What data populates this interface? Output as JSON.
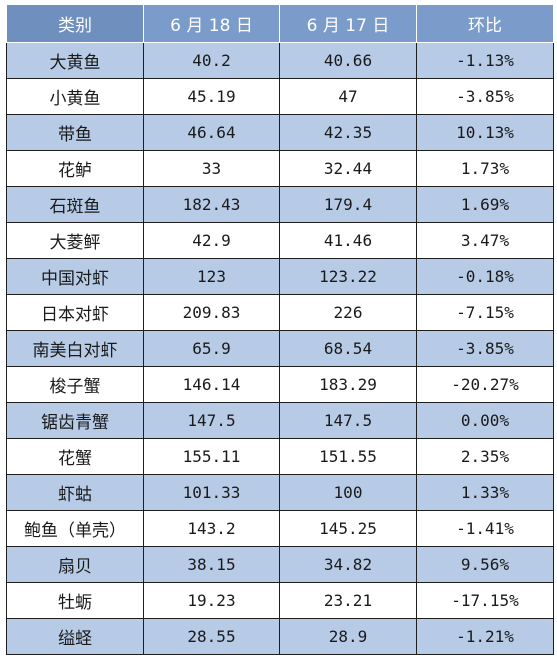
{
  "table": {
    "headers": [
      "类别",
      "6 月 18 日",
      "6 月 17 日",
      "环比"
    ],
    "rows": [
      [
        "大黄鱼",
        "40.2",
        "40.66",
        "-1.13%"
      ],
      [
        "小黄鱼",
        "45.19",
        "47",
        "-3.85%"
      ],
      [
        "带鱼",
        "46.64",
        "42.35",
        "10.13%"
      ],
      [
        "花鲈",
        "33",
        "32.44",
        "1.73%"
      ],
      [
        "石斑鱼",
        "182.43",
        "179.4",
        "1.69%"
      ],
      [
        "大菱鲆",
        "42.9",
        "41.46",
        "3.47%"
      ],
      [
        "中国对虾",
        "123",
        "123.22",
        "-0.18%"
      ],
      [
        "日本对虾",
        "209.83",
        "226",
        "-7.15%"
      ],
      [
        "南美白对虾",
        "65.9",
        "68.54",
        "-3.85%"
      ],
      [
        "梭子蟹",
        "146.14",
        "183.29",
        "-20.27%"
      ],
      [
        "锯齿青蟹",
        "147.5",
        "147.5",
        "0.00%"
      ],
      [
        "花蟹",
        "155.11",
        "151.55",
        "2.35%"
      ],
      [
        "虾蛄",
        "101.33",
        "100",
        "1.33%"
      ],
      [
        "鲍鱼（单壳）",
        "143.2",
        "145.25",
        "-1.41%"
      ],
      [
        "扇贝",
        "38.15",
        "34.82",
        "9.56%"
      ],
      [
        "牡蛎",
        "19.23",
        "23.21",
        "-17.15%"
      ],
      [
        "缢蛏",
        "28.55",
        "28.9",
        "-1.21%"
      ]
    ]
  },
  "colors": {
    "header_bg": "#7b9bca",
    "band_bg": "#b7cbe7",
    "plain_bg": "#ffffff",
    "border": "#1e1e1e"
  }
}
